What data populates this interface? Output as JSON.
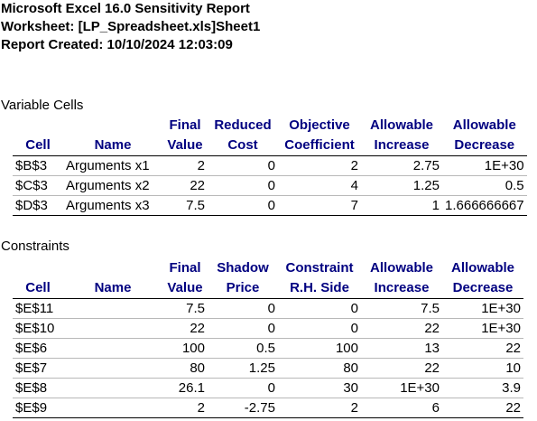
{
  "header": {
    "line1": "Microsoft Excel 16.0 Sensitivity Report",
    "line2": "Worksheet: [LP_Spreadsheet.xls]Sheet1",
    "line3": "Report Created: 10/10/2024 12:03:09"
  },
  "variable_cells": {
    "title": "Variable Cells",
    "head1": [
      "",
      "",
      "Final",
      "Reduced",
      "Objective",
      "Allowable",
      "Allowable"
    ],
    "head2": [
      "Cell",
      "Name",
      "Value",
      "Cost",
      "Coefficient",
      "Increase",
      "Decrease"
    ],
    "rows": [
      [
        "$B$3",
        "Arguments x1",
        "2",
        "0",
        "2",
        "2.75",
        "1E+30"
      ],
      [
        "$C$3",
        "Arguments x2",
        "22",
        "0",
        "4",
        "1.25",
        "0.5"
      ],
      [
        "$D$3",
        "Arguments x3",
        "7.5",
        "0",
        "7",
        "1",
        "1.666666667"
      ]
    ]
  },
  "constraints": {
    "title": "Constraints",
    "head1": [
      "",
      "",
      "Final",
      "Shadow",
      "Constraint",
      "Allowable",
      "Allowable"
    ],
    "head2": [
      "Cell",
      "Name",
      "Value",
      "Price",
      "R.H. Side",
      "Increase",
      "Decrease"
    ],
    "rows": [
      [
        "$E$11",
        "",
        "7.5",
        "0",
        "0",
        "7.5",
        "1E+30"
      ],
      [
        "$E$10",
        "",
        "22",
        "0",
        "0",
        "22",
        "1E+30"
      ],
      [
        "$E$6",
        "",
        "100",
        "0.5",
        "100",
        "13",
        "22"
      ],
      [
        "$E$7",
        "",
        "80",
        "1.25",
        "80",
        "22",
        "10"
      ],
      [
        "$E$8",
        "",
        "26.1",
        "0",
        "30",
        "1E+30",
        "3.9"
      ],
      [
        "$E$9",
        "",
        "2",
        "-2.75",
        "2",
        "6",
        "22"
      ]
    ]
  }
}
